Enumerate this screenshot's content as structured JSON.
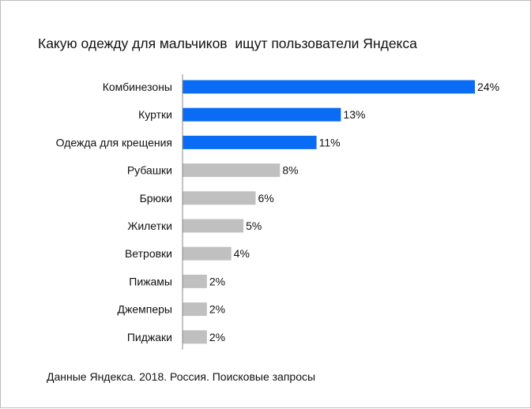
{
  "chart_data": {
    "type": "bar",
    "orientation": "horizontal",
    "title": "Какую одежду для мальчиков  ищут пользователи Яндекса",
    "source": "Данные Яндекса. 2018. Россия. Поисковые запросы",
    "categories": [
      "Комбинезоны",
      "Куртки",
      "Одежда для крещения",
      "Рубашки",
      "Брюки",
      "Жилетки",
      "Ветровки",
      "Пижамы",
      "Джемперы",
      "Пиджаки"
    ],
    "values": [
      24,
      13,
      11,
      8,
      6,
      5,
      4,
      2,
      2,
      2
    ],
    "labels": [
      "24%",
      "13%",
      "11%",
      "8%",
      "6%",
      "5%",
      "4%",
      "2%",
      "2%",
      "2%"
    ],
    "highlight_count": 3,
    "colors": {
      "highlight": "#0a6cf5",
      "default": "#c0c0c0",
      "axis": "#888888"
    },
    "xlim": [
      0,
      24
    ]
  }
}
